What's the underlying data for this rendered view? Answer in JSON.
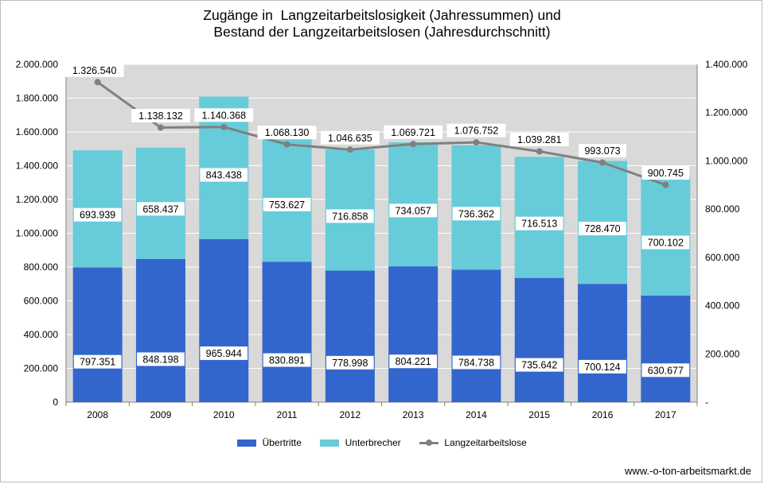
{
  "chart_data": {
    "type": "bar",
    "title": [
      "Zugänge in  Langzeitarbeitslosigkeit (Jahressummen) und",
      "Bestand der Langzeitarbeitslosen (Jahresdurchschnitt)"
    ],
    "categories": [
      "2008",
      "2009",
      "2010",
      "2011",
      "2012",
      "2013",
      "2014",
      "2015",
      "2016",
      "2017"
    ],
    "stacked": true,
    "series": [
      {
        "name": "Übertritte",
        "color": "#3366cc",
        "axis": "left",
        "values": [
          797351,
          848198,
          965944,
          830891,
          778998,
          804221,
          784738,
          735642,
          700124,
          630677
        ],
        "labels": [
          "797.351",
          "848.198",
          "965.944",
          "830.891",
          "778.998",
          "804.221",
          "784.738",
          "735.642",
          "700.124",
          "630.677"
        ]
      },
      {
        "name": "Unterbrecher",
        "color": "#66ccd9",
        "axis": "left",
        "values": [
          693939,
          658437,
          843438,
          753627,
          716858,
          734057,
          736362,
          716513,
          728470,
          700102
        ],
        "labels": [
          "693.939",
          "658.437",
          "843.438",
          "753.627",
          "716.858",
          "734.057",
          "736.362",
          "716.513",
          "728.470",
          "700.102"
        ]
      },
      {
        "name": "Langzeitarbeitslose",
        "color": "#808080",
        "axis": "right",
        "type": "line",
        "values": [
          1326540,
          1138132,
          1140368,
          1068130,
          1046635,
          1069721,
          1076752,
          1039281,
          993073,
          900745
        ],
        "labels": [
          "1.326.540",
          "1.138.132",
          "1.140.368",
          "1.068.130",
          "1.046.635",
          "1.069.721",
          "1.076.752",
          "1.039.281",
          "993.073",
          "900.745"
        ]
      }
    ],
    "y_left": {
      "ylim": [
        0,
        2000000
      ],
      "ticks": [
        "0",
        "200.000",
        "400.000",
        "600.000",
        "800.000",
        "1.000.000",
        "1.200.000",
        "1.400.000",
        "1.600.000",
        "1.800.000",
        "2.000.000"
      ]
    },
    "y_right": {
      "ylim": [
        0,
        1400000
      ],
      "ticks": [
        "-",
        "200.000",
        "400.000",
        "600.000",
        "800.000",
        "1.000.000",
        "1.200.000",
        "1.400.000"
      ]
    },
    "grid": true,
    "plot_background": "#d9d9d9",
    "legend": "bottom"
  },
  "source": "www.-o-ton-arbeitsmarkt.de"
}
